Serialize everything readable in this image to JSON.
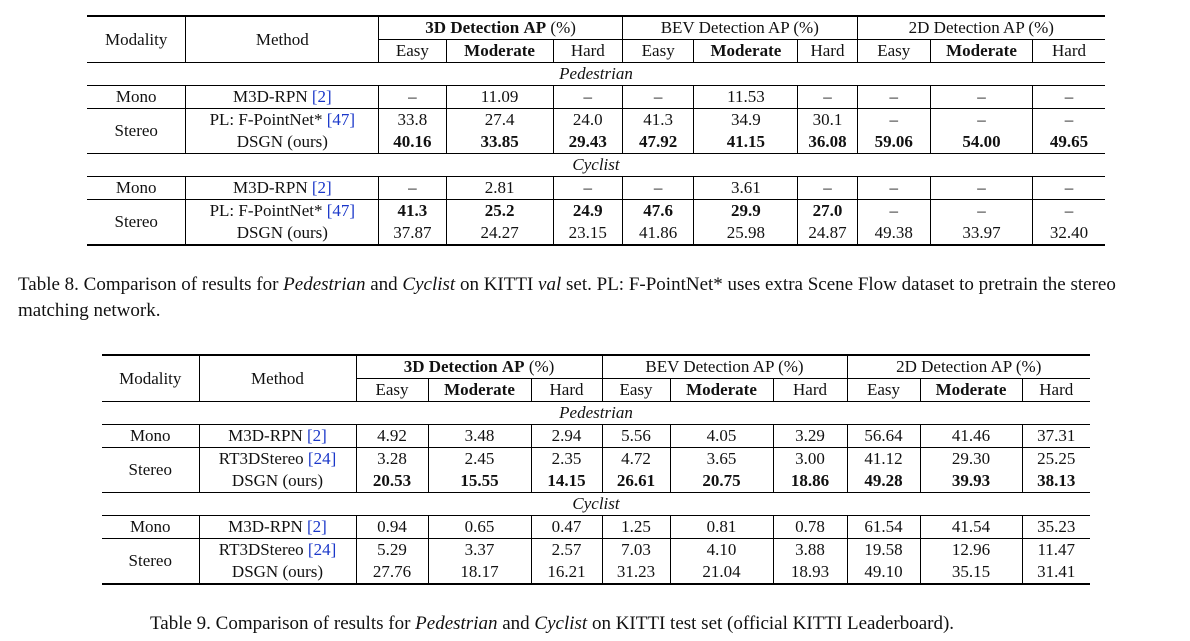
{
  "headers": {
    "modality": "Modality",
    "method": "Method",
    "easy": "Easy",
    "moderate": "Moderate",
    "hard": "Hard",
    "ap": "AP",
    "pct": "(%)"
  },
  "table8": {
    "group3d": "3D Detection",
    "groupbev": "BEV Detection AP (%)",
    "group2d": "2D Detection AP (%)",
    "sec_ped": "Pedestrian",
    "sec_cyc": "Cyclist",
    "mono": "Mono",
    "stereo": "Stereo",
    "m3d": "M3D-RPN",
    "m3d_ref": "[2]",
    "pl": "PL: F-PointNet*",
    "pl_ref": "[47]",
    "dsgn": "DSGN (ours)",
    "ped_m3d": [
      "–",
      "11.09",
      "–",
      "–",
      "11.53",
      "–",
      "–",
      "–",
      "–"
    ],
    "ped_pl": [
      "33.8",
      "27.4",
      "24.0",
      "41.3",
      "34.9",
      "30.1",
      "–",
      "–",
      "–"
    ],
    "ped_dsgn": [
      "40.16",
      "33.85",
      "29.43",
      "47.92",
      "41.15",
      "36.08",
      "59.06",
      "54.00",
      "49.65"
    ],
    "cyc_m3d": [
      "–",
      "2.81",
      "–",
      "–",
      "3.61",
      "–",
      "–",
      "–",
      "–"
    ],
    "cyc_pl": [
      "41.3",
      "25.2",
      "24.9",
      "47.6",
      "29.9",
      "27.0",
      "–",
      "–",
      "–"
    ],
    "cyc_dsgn": [
      "37.87",
      "24.27",
      "23.15",
      "41.86",
      "25.98",
      "24.87",
      "49.38",
      "33.97",
      "32.40"
    ]
  },
  "caption8": {
    "a": "Table 8. Comparison of results for ",
    "ped": "Pedestrian",
    "and": " and ",
    "cyc": "Cyclist",
    "b": " on KITTI ",
    "val": "val",
    "c": " set. PL: F-PointNet* uses extra Scene Flow dataset to pretrain the stereo matching network."
  },
  "table9": {
    "group3d": "3D Detection",
    "groupbev": "BEV Detection AP (%)",
    "group2d": "2D Detection AP (%)",
    "sec_ped": "Pedestrian",
    "sec_cyc": "Cyclist",
    "mono": "Mono",
    "stereo": "Stereo",
    "m3d": "M3D-RPN",
    "m3d_ref": "[2]",
    "rt": "RT3DStereo",
    "rt_ref": "[24]",
    "dsgn": "DSGN (ours)",
    "ped_m3d": [
      "4.92",
      "3.48",
      "2.94",
      "5.56",
      "4.05",
      "3.29",
      "56.64",
      "41.46",
      "37.31"
    ],
    "ped_rt": [
      "3.28",
      "2.45",
      "2.35",
      "4.72",
      "3.65",
      "3.00",
      "41.12",
      "29.30",
      "25.25"
    ],
    "ped_dsgn": [
      "20.53",
      "15.55",
      "14.15",
      "26.61",
      "20.75",
      "18.86",
      "49.28",
      "39.93",
      "38.13"
    ],
    "cyc_m3d": [
      "0.94",
      "0.65",
      "0.47",
      "1.25",
      "0.81",
      "0.78",
      "61.54",
      "41.54",
      "35.23"
    ],
    "cyc_rt": [
      "5.29",
      "3.37",
      "2.57",
      "7.03",
      "4.10",
      "3.88",
      "19.58",
      "12.96",
      "11.47"
    ],
    "cyc_dsgn": [
      "27.76",
      "18.17",
      "16.21",
      "31.23",
      "21.04",
      "18.93",
      "49.10",
      "35.15",
      "31.41"
    ]
  },
  "caption9": {
    "a": "Table 9. Comparison of results for ",
    "ped": "Pedestrian",
    "and": " and ",
    "cyc": "Cyclist",
    "b": " on KITTI test set (official KITTI Leaderboard)."
  }
}
